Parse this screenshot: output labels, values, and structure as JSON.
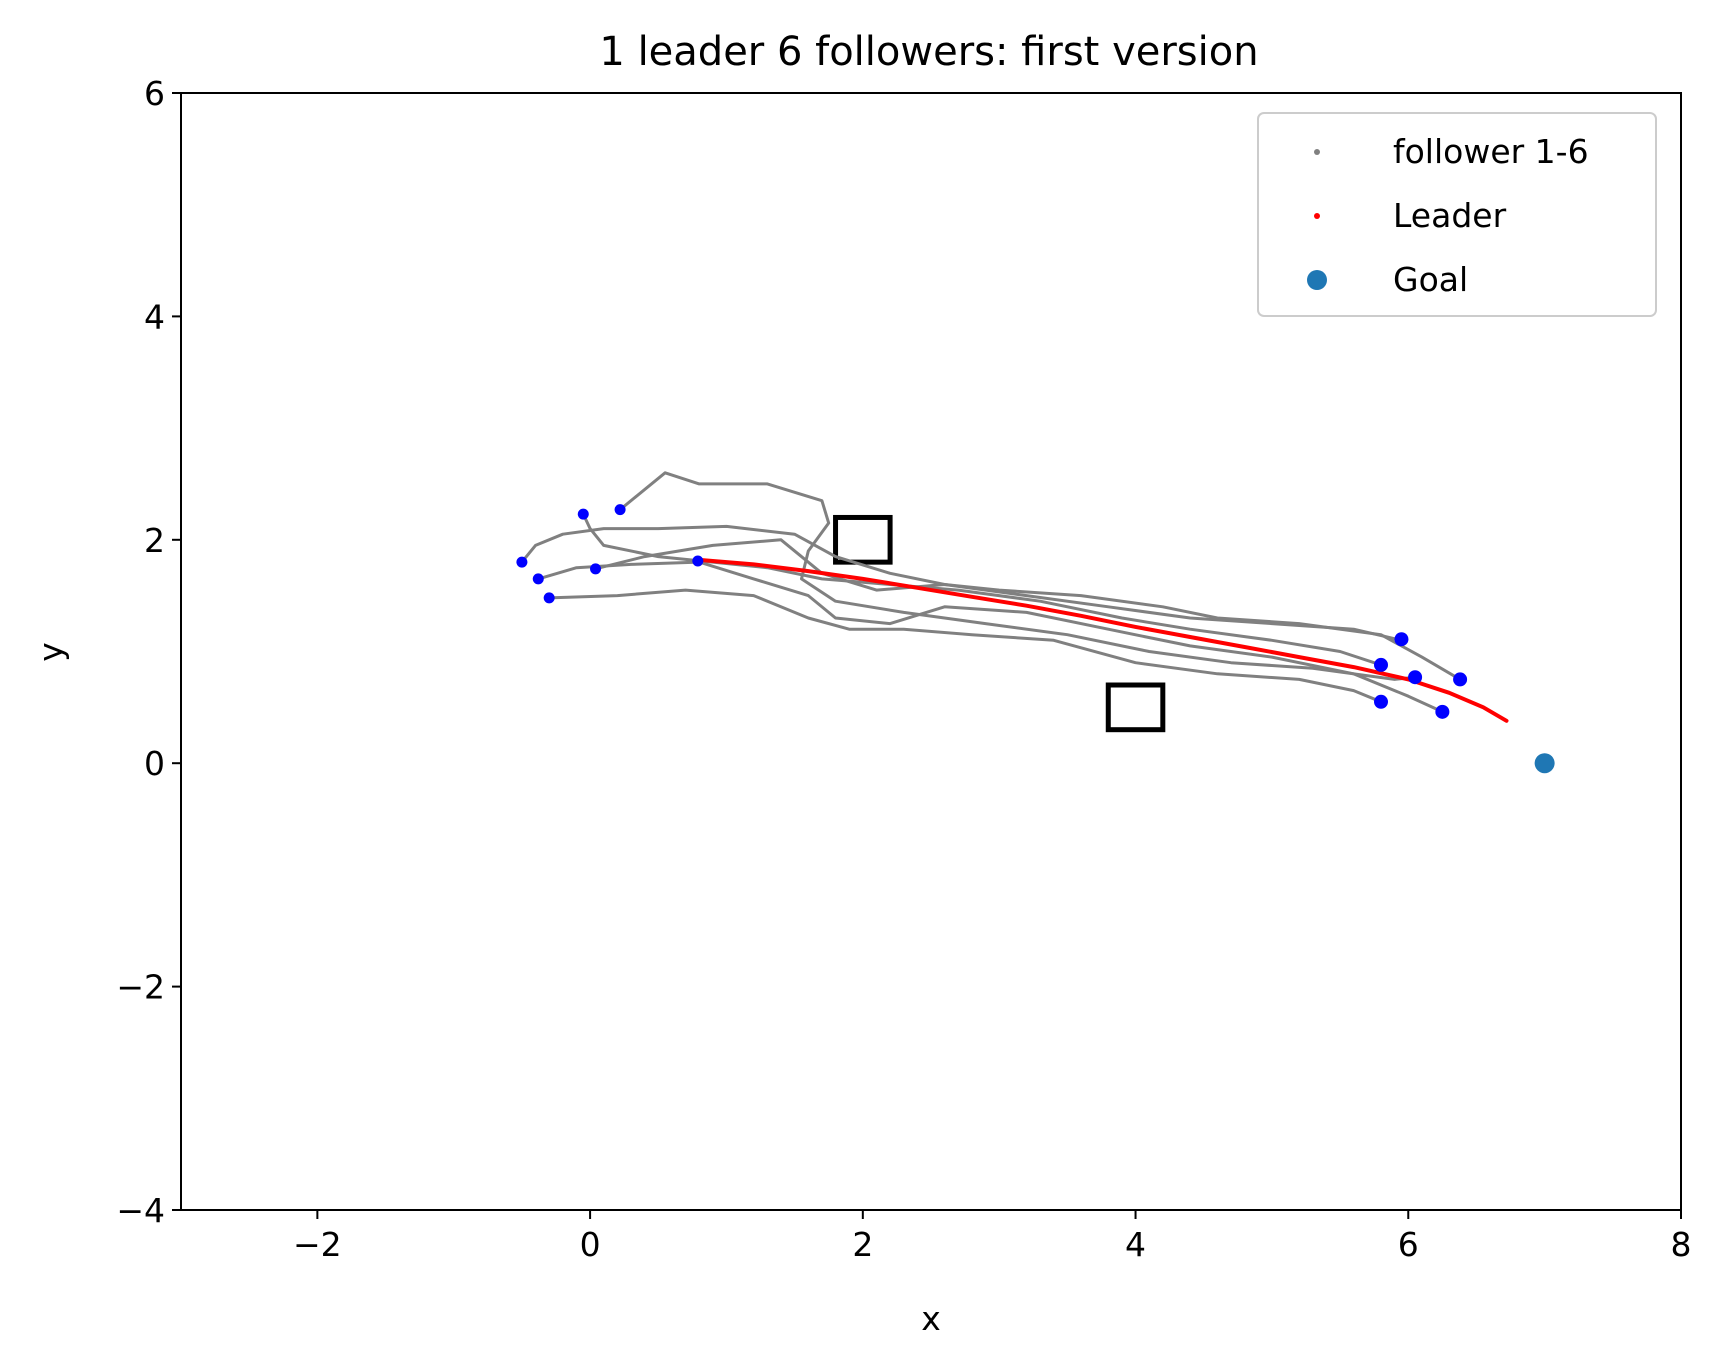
{
  "chart_data": {
    "type": "scatter",
    "title": "1 leader 6 followers: first version",
    "xlabel": "x",
    "ylabel": "y",
    "xlim": [
      -3,
      8
    ],
    "ylim": [
      -4,
      6
    ],
    "xticks": [
      -2,
      0,
      2,
      4,
      6,
      8
    ],
    "yticks": [
      -4,
      -2,
      0,
      2,
      4,
      6
    ],
    "xtick_labels": [
      "−2",
      "0",
      "2",
      "4",
      "6",
      "8"
    ],
    "ytick_labels": [
      "−4",
      "−2",
      "0",
      "2",
      "4",
      "6"
    ],
    "grid": false,
    "legend_position": "top-right",
    "colors": {
      "follower": "#808080",
      "leader": "#ff0000",
      "goal": "#1f77b4",
      "robot_marker": "#0000ff",
      "obstacle": "#000000"
    },
    "series": [
      {
        "name": "follower 1-6",
        "paths": [
          [
            [
              -0.5,
              1.8
            ],
            [
              -0.4,
              1.95
            ],
            [
              -0.2,
              2.05
            ],
            [
              0.1,
              2.1
            ],
            [
              0.5,
              2.1
            ],
            [
              1.0,
              2.12
            ],
            [
              1.5,
              2.05
            ],
            [
              1.8,
              1.85
            ],
            [
              2.2,
              1.7
            ],
            [
              2.6,
              1.6
            ],
            [
              3.2,
              1.5
            ],
            [
              3.8,
              1.4
            ],
            [
              4.4,
              1.3
            ],
            [
              5.0,
              1.25
            ],
            [
              5.6,
              1.2
            ],
            [
              5.95,
              1.1
            ]
          ],
          [
            [
              -0.3,
              1.48
            ],
            [
              0.2,
              1.5
            ],
            [
              0.7,
              1.55
            ],
            [
              1.2,
              1.5
            ],
            [
              1.6,
              1.3
            ],
            [
              1.9,
              1.2
            ],
            [
              2.3,
              1.2
            ],
            [
              2.8,
              1.15
            ],
            [
              3.4,
              1.1
            ],
            [
              4.0,
              0.9
            ],
            [
              4.6,
              0.8
            ],
            [
              5.2,
              0.75
            ],
            [
              5.6,
              0.65
            ],
            [
              5.8,
              0.55
            ]
          ],
          [
            [
              -0.05,
              2.23
            ],
            [
              0.0,
              2.1
            ],
            [
              0.1,
              1.95
            ],
            [
              0.5,
              1.85
            ],
            [
              0.9,
              1.8
            ],
            [
              1.3,
              1.75
            ],
            [
              1.7,
              1.65
            ],
            [
              2.2,
              1.6
            ],
            [
              2.7,
              1.55
            ],
            [
              3.3,
              1.45
            ],
            [
              3.9,
              1.3
            ],
            [
              4.4,
              1.2
            ],
            [
              5.0,
              1.1
            ],
            [
              5.5,
              1.0
            ],
            [
              5.8,
              0.88
            ]
          ],
          [
            [
              0.22,
              2.27
            ],
            [
              0.55,
              2.6
            ],
            [
              0.8,
              2.5
            ],
            [
              1.3,
              2.5
            ],
            [
              1.7,
              2.35
            ],
            [
              1.75,
              2.15
            ],
            [
              1.6,
              1.9
            ],
            [
              1.55,
              1.65
            ],
            [
              1.8,
              1.45
            ],
            [
              2.3,
              1.35
            ],
            [
              2.9,
              1.25
            ],
            [
              3.5,
              1.15
            ],
            [
              4.1,
              1.0
            ],
            [
              4.7,
              0.9
            ],
            [
              5.3,
              0.85
            ],
            [
              5.9,
              0.75
            ],
            [
              6.05,
              0.77
            ]
          ],
          [
            [
              -0.38,
              1.65
            ],
            [
              -0.1,
              1.75
            ],
            [
              0.3,
              1.78
            ],
            [
              0.8,
              1.8
            ],
            [
              1.2,
              1.65
            ],
            [
              1.6,
              1.5
            ],
            [
              1.8,
              1.3
            ],
            [
              2.2,
              1.25
            ],
            [
              2.6,
              1.4
            ],
            [
              3.2,
              1.35
            ],
            [
              3.8,
              1.2
            ],
            [
              4.4,
              1.05
            ],
            [
              5.0,
              0.95
            ],
            [
              5.6,
              0.8
            ],
            [
              6.0,
              0.6
            ],
            [
              6.25,
              0.46
            ]
          ],
          [
            [
              0.04,
              1.74
            ],
            [
              0.4,
              1.85
            ],
            [
              0.9,
              1.95
            ],
            [
              1.4,
              2.0
            ],
            [
              1.7,
              1.7
            ],
            [
              2.1,
              1.55
            ],
            [
              2.6,
              1.6
            ],
            [
              3.0,
              1.55
            ],
            [
              3.6,
              1.5
            ],
            [
              4.2,
              1.4
            ],
            [
              4.6,
              1.3
            ],
            [
              5.2,
              1.25
            ],
            [
              5.8,
              1.15
            ],
            [
              6.1,
              0.95
            ],
            [
              6.38,
              0.75
            ]
          ]
        ]
      },
      {
        "name": "Leader",
        "path": [
          [
            0.8,
            1.82
          ],
          [
            1.2,
            1.78
          ],
          [
            1.6,
            1.72
          ],
          [
            2.0,
            1.65
          ],
          [
            2.4,
            1.57
          ],
          [
            2.8,
            1.49
          ],
          [
            3.2,
            1.41
          ],
          [
            3.6,
            1.32
          ],
          [
            4.0,
            1.22
          ],
          [
            4.4,
            1.13
          ],
          [
            4.8,
            1.04
          ],
          [
            5.2,
            0.95
          ],
          [
            5.6,
            0.86
          ],
          [
            6.0,
            0.75
          ],
          [
            6.3,
            0.63
          ],
          [
            6.55,
            0.5
          ],
          [
            6.72,
            0.38
          ]
        ]
      },
      {
        "name": "Goal",
        "points": [
          [
            7.0,
            0.0
          ]
        ]
      }
    ],
    "robot_start_positions": [
      [
        -0.5,
        1.8
      ],
      [
        -0.38,
        1.65
      ],
      [
        -0.3,
        1.48
      ],
      [
        -0.05,
        2.23
      ],
      [
        0.04,
        1.74
      ],
      [
        0.22,
        2.27
      ],
      [
        0.79,
        1.81
      ]
    ],
    "robot_end_positions": [
      [
        5.95,
        1.11
      ],
      [
        5.8,
        0.88
      ],
      [
        6.05,
        0.77
      ],
      [
        6.38,
        0.75
      ],
      [
        5.8,
        0.55
      ],
      [
        6.25,
        0.46
      ]
    ],
    "obstacles": [
      {
        "x_min": 1.8,
        "x_max": 2.2,
        "y_min": 1.8,
        "y_max": 2.2
      },
      {
        "x_min": 3.8,
        "x_max": 4.2,
        "y_min": 0.3,
        "y_max": 0.7
      }
    ]
  }
}
